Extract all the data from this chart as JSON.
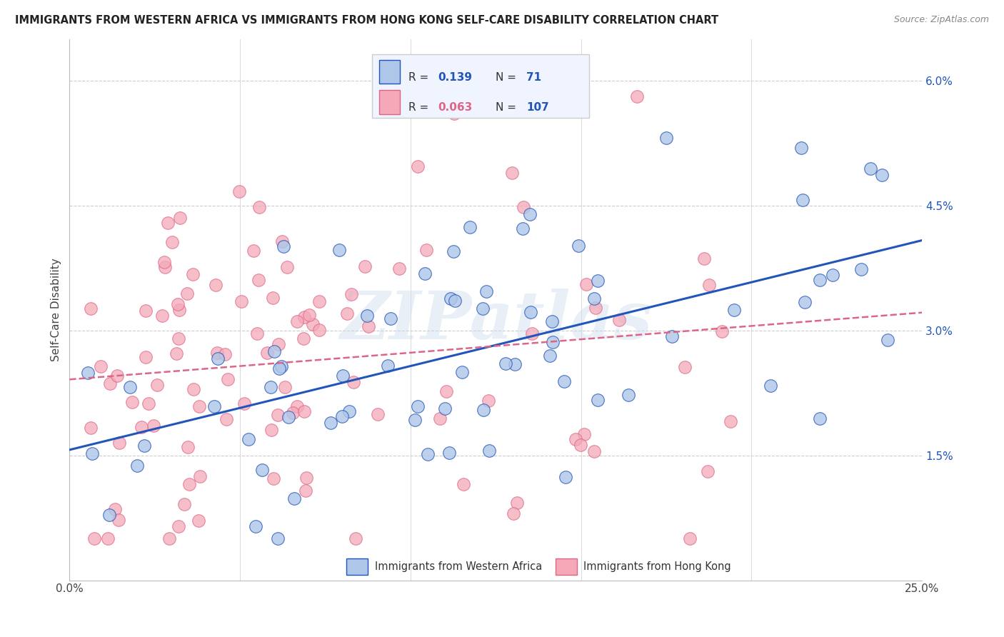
{
  "title": "IMMIGRANTS FROM WESTERN AFRICA VS IMMIGRANTS FROM HONG KONG SELF-CARE DISABILITY CORRELATION CHART",
  "source": "Source: ZipAtlas.com",
  "ylabel": "Self-Care Disability",
  "y_ticks_labels": [
    "1.5%",
    "3.0%",
    "4.5%",
    "6.0%"
  ],
  "y_ticks_vals": [
    0.015,
    0.03,
    0.045,
    0.06
  ],
  "x_lim": [
    0.0,
    0.25
  ],
  "y_lim": [
    0.0,
    0.065
  ],
  "x_ticks": [
    0.0,
    0.05,
    0.1,
    0.15,
    0.2,
    0.25
  ],
  "x_tick_labels": [
    "0.0%",
    "",
    "",
    "",
    "",
    "25.0%"
  ],
  "color_blue": "#aec6e8",
  "color_pink": "#f4a8b8",
  "line_blue": "#2255bb",
  "line_pink": "#dd6688",
  "watermark": "ZIPatlas",
  "legend_box_color": "#f0f4ff",
  "legend_box_edge": "#cccccc",
  "r1": "0.139",
  "n1": "71",
  "r2": "0.063",
  "n2": "107",
  "blue_scatter_seed": 10,
  "pink_scatter_seed": 20
}
